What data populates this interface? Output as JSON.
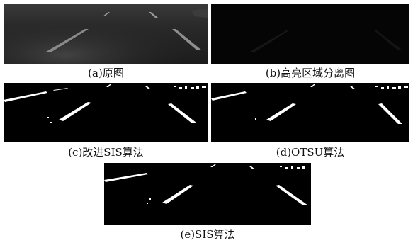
{
  "figure": {
    "panels": [
      {
        "id": "a",
        "caption": "(a)原图"
      },
      {
        "id": "b",
        "caption": "(b)高亮区域分离图"
      },
      {
        "id": "c",
        "caption": "(c)改进SIS算法"
      },
      {
        "id": "d",
        "caption": "(d)OTSU算法"
      },
      {
        "id": "e",
        "caption": "(e)SIS算法"
      }
    ]
  }
}
